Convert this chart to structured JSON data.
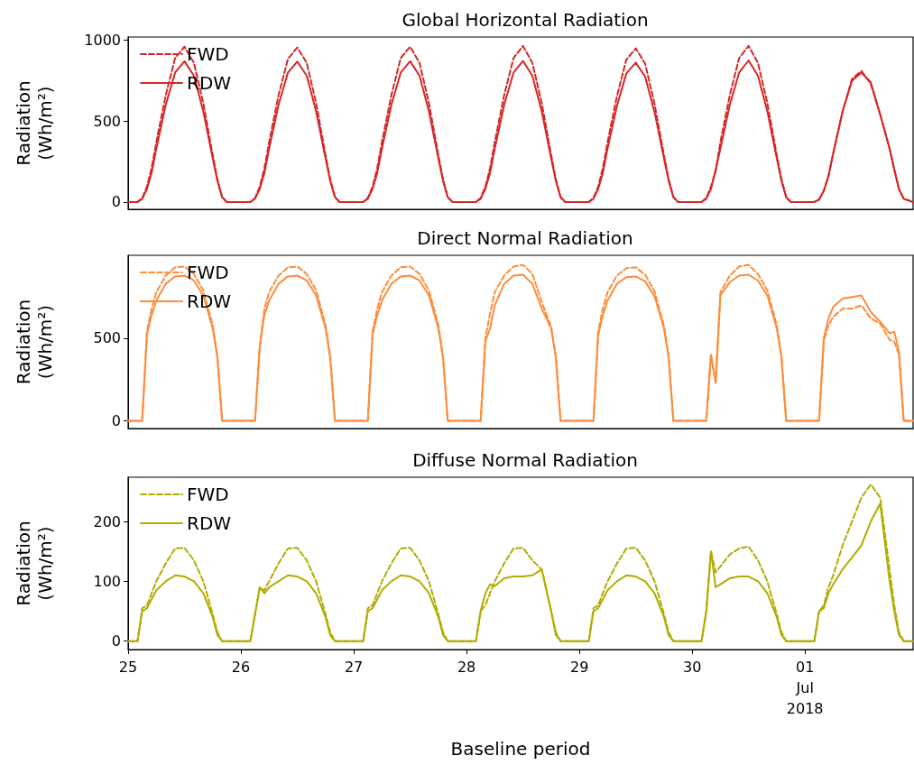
{
  "chart_data": [
    {
      "type": "line",
      "title": "Global Horizontal Radiation",
      "ylabel": "Radiation\n(Wh/m²)",
      "legend": "top left",
      "grid": false,
      "tick_labels": "y",
      "x": [
        "2018-06-25T00:00",
        "2018-06-25T02:00",
        "2018-06-25T03:00",
        "2018-06-25T04:00",
        "2018-06-25T05:00",
        "2018-06-25T06:00",
        "2018-06-25T08:00",
        "2018-06-25T10:00",
        "2018-06-25T12:00",
        "2018-06-25T14:00",
        "2018-06-25T16:00",
        "2018-06-25T18:00",
        "2018-06-25T19:00",
        "2018-06-25T20:00",
        "2018-06-25T21:00",
        "2018-06-26T02:00",
        "2018-06-26T03:00",
        "2018-06-26T04:00",
        "2018-06-26T05:00",
        "2018-06-26T06:00",
        "2018-06-26T08:00",
        "2018-06-26T10:00",
        "2018-06-26T12:00",
        "2018-06-26T14:00",
        "2018-06-26T16:00",
        "2018-06-26T18:00",
        "2018-06-26T19:00",
        "2018-06-26T20:00",
        "2018-06-26T21:00",
        "2018-06-27T02:00",
        "2018-06-27T03:00",
        "2018-06-27T04:00",
        "2018-06-27T05:00",
        "2018-06-27T06:00",
        "2018-06-27T08:00",
        "2018-06-27T10:00",
        "2018-06-27T12:00",
        "2018-06-27T14:00",
        "2018-06-27T16:00",
        "2018-06-27T18:00",
        "2018-06-27T19:00",
        "2018-06-27T20:00",
        "2018-06-27T21:00",
        "2018-06-28T02:00",
        "2018-06-28T03:00",
        "2018-06-28T04:00",
        "2018-06-28T05:00",
        "2018-06-28T06:00",
        "2018-06-28T08:00",
        "2018-06-28T10:00",
        "2018-06-28T12:00",
        "2018-06-28T14:00",
        "2018-06-28T16:00",
        "2018-06-28T18:00",
        "2018-06-28T19:00",
        "2018-06-28T20:00",
        "2018-06-28T21:00",
        "2018-06-29T02:00",
        "2018-06-29T03:00",
        "2018-06-29T04:00",
        "2018-06-29T05:00",
        "2018-06-29T06:00",
        "2018-06-29T08:00",
        "2018-06-29T10:00",
        "2018-06-29T12:00",
        "2018-06-29T14:00",
        "2018-06-29T16:00",
        "2018-06-29T18:00",
        "2018-06-29T19:00",
        "2018-06-29T20:00",
        "2018-06-29T21:00",
        "2018-06-30T02:00",
        "2018-06-30T03:00",
        "2018-06-30T04:00",
        "2018-06-30T05:00",
        "2018-06-30T06:00",
        "2018-06-30T08:00",
        "2018-06-30T10:00",
        "2018-06-30T12:00",
        "2018-06-30T14:00",
        "2018-06-30T16:00",
        "2018-06-30T18:00",
        "2018-06-30T19:00",
        "2018-06-30T20:00",
        "2018-06-30T21:00",
        "2018-07-01T02:00",
        "2018-07-01T03:00",
        "2018-07-01T04:00",
        "2018-07-01T05:00",
        "2018-07-01T06:00",
        "2018-07-01T08:00",
        "2018-07-01T10:00",
        "2018-07-01T12:00",
        "2018-07-01T14:00",
        "2018-07-01T16:00",
        "2018-07-01T18:00",
        "2018-07-01T19:00",
        "2018-07-01T20:00",
        "2018-07-01T21:00",
        "2018-07-01T23:00"
      ],
      "xlim": [
        "2018-06-25T00:00",
        "2018-07-01T23:00"
      ],
      "ylim": [
        -45,
        1020
      ],
      "yticks": [
        0,
        500,
        1000
      ],
      "series": [
        {
          "name": "FWD",
          "color": "#d62728",
          "line_style": "dashed",
          "values": [
            0,
            0,
            25,
            95,
            210,
            370,
            660,
            890,
            960,
            860,
            610,
            290,
            140,
            30,
            0,
            0,
            25,
            95,
            210,
            370,
            660,
            885,
            955,
            860,
            610,
            290,
            140,
            30,
            0,
            0,
            25,
            95,
            210,
            370,
            660,
            890,
            960,
            860,
            610,
            290,
            140,
            30,
            0,
            0,
            25,
            95,
            210,
            370,
            660,
            890,
            965,
            860,
            610,
            290,
            140,
            30,
            0,
            0,
            25,
            95,
            210,
            370,
            655,
            880,
            950,
            855,
            605,
            290,
            140,
            30,
            0,
            0,
            25,
            95,
            190,
            370,
            660,
            890,
            965,
            860,
            610,
            290,
            140,
            30,
            0,
            0,
            15,
            70,
            160,
            300,
            560,
            760,
            810,
            730,
            540,
            330,
            200,
            80,
            20,
            0
          ]
        },
        {
          "name": "RDW",
          "color": "#d62728",
          "line_style": "solid",
          "values": [
            0,
            0,
            20,
            80,
            180,
            330,
            600,
            800,
            870,
            780,
            560,
            270,
            130,
            30,
            0,
            0,
            20,
            80,
            180,
            330,
            600,
            800,
            868,
            780,
            560,
            270,
            130,
            30,
            0,
            0,
            20,
            80,
            180,
            330,
            600,
            800,
            870,
            780,
            560,
            270,
            130,
            30,
            0,
            0,
            20,
            80,
            180,
            330,
            600,
            800,
            872,
            780,
            560,
            270,
            130,
            30,
            0,
            0,
            20,
            80,
            180,
            330,
            595,
            795,
            862,
            775,
            555,
            270,
            130,
            30,
            0,
            0,
            20,
            80,
            200,
            330,
            600,
            800,
            875,
            780,
            560,
            270,
            130,
            30,
            0,
            0,
            15,
            70,
            160,
            300,
            560,
            750,
            800,
            740,
            540,
            330,
            200,
            80,
            20,
            0
          ]
        }
      ]
    },
    {
      "type": "line",
      "title": "Direct Normal Radiation",
      "ylabel": "Radiation\n(Wh/m²)",
      "legend": "top left",
      "grid": false,
      "tick_labels": "y",
      "x": [
        "2018-06-25T00:00",
        "2018-06-25T02:00",
        "2018-06-25T03:00",
        "2018-06-25T04:00",
        "2018-06-25T05:00",
        "2018-06-25T06:00",
        "2018-06-25T08:00",
        "2018-06-25T10:00",
        "2018-06-25T12:00",
        "2018-06-25T14:00",
        "2018-06-25T16:00",
        "2018-06-25T18:00",
        "2018-06-25T19:00",
        "2018-06-25T20:00",
        "2018-06-25T21:00",
        "2018-06-26T02:00",
        "2018-06-26T03:00",
        "2018-06-26T04:00",
        "2018-06-26T05:00",
        "2018-06-26T06:00",
        "2018-06-26T08:00",
        "2018-06-26T10:00",
        "2018-06-26T12:00",
        "2018-06-26T14:00",
        "2018-06-26T16:00",
        "2018-06-26T18:00",
        "2018-06-26T19:00",
        "2018-06-26T20:00",
        "2018-06-26T21:00",
        "2018-06-27T02:00",
        "2018-06-27T03:00",
        "2018-06-27T04:00",
        "2018-06-27T05:00",
        "2018-06-27T06:00",
        "2018-06-27T08:00",
        "2018-06-27T10:00",
        "2018-06-27T12:00",
        "2018-06-27T14:00",
        "2018-06-27T16:00",
        "2018-06-27T18:00",
        "2018-06-27T19:00",
        "2018-06-27T20:00",
        "2018-06-27T21:00",
        "2018-06-28T02:00",
        "2018-06-28T03:00",
        "2018-06-28T04:00",
        "2018-06-28T05:00",
        "2018-06-28T06:00",
        "2018-06-28T08:00",
        "2018-06-28T10:00",
        "2018-06-28T12:00",
        "2018-06-28T14:00",
        "2018-06-28T16:00",
        "2018-06-28T18:00",
        "2018-06-28T19:00",
        "2018-06-28T20:00",
        "2018-06-28T21:00",
        "2018-06-29T02:00",
        "2018-06-29T03:00",
        "2018-06-29T04:00",
        "2018-06-29T05:00",
        "2018-06-29T06:00",
        "2018-06-29T08:00",
        "2018-06-29T10:00",
        "2018-06-29T12:00",
        "2018-06-29T14:00",
        "2018-06-29T16:00",
        "2018-06-29T18:00",
        "2018-06-29T19:00",
        "2018-06-29T20:00",
        "2018-06-29T21:00",
        "2018-06-30T02:00",
        "2018-06-30T03:00",
        "2018-06-30T04:00",
        "2018-06-30T05:00",
        "2018-06-30T06:00",
        "2018-06-30T08:00",
        "2018-06-30T10:00",
        "2018-06-30T12:00",
        "2018-06-30T14:00",
        "2018-06-30T16:00",
        "2018-06-30T18:00",
        "2018-06-30T19:00",
        "2018-06-30T20:00",
        "2018-06-30T21:00",
        "2018-07-01T02:00",
        "2018-07-01T03:00",
        "2018-07-01T04:00",
        "2018-07-01T05:00",
        "2018-07-01T06:00",
        "2018-07-01T08:00",
        "2018-07-01T10:00",
        "2018-07-01T12:00",
        "2018-07-01T14:00",
        "2018-07-01T16:00",
        "2018-07-01T18:00",
        "2018-07-01T19:00",
        "2018-07-01T20:00",
        "2018-07-01T21:00",
        "2018-07-01T23:00"
      ],
      "xlim": [
        "2018-06-25T00:00",
        "2018-07-01T23:00"
      ],
      "ylim": [
        -47,
        1003
      ],
      "yticks": [
        0,
        500
      ],
      "series": [
        {
          "name": "FWD",
          "color": "#fd8d3c",
          "line_style": "dashed",
          "values": [
            0,
            0,
            0,
            540,
            680,
            780,
            880,
            930,
            935,
            890,
            790,
            580,
            390,
            0,
            0,
            0,
            0,
            450,
            680,
            780,
            880,
            930,
            935,
            890,
            790,
            580,
            390,
            0,
            0,
            0,
            0,
            540,
            680,
            780,
            880,
            930,
            935,
            890,
            790,
            580,
            390,
            0,
            0,
            0,
            0,
            500,
            650,
            780,
            880,
            935,
            945,
            890,
            720,
            570,
            390,
            0,
            0,
            0,
            0,
            540,
            680,
            780,
            880,
            925,
            930,
            885,
            785,
            575,
            390,
            0,
            0,
            0,
            0,
            400,
            230,
            780,
            880,
            935,
            945,
            890,
            790,
            580,
            390,
            0,
            0,
            0,
            0,
            480,
            580,
            630,
            680,
            680,
            700,
            620,
            590,
            490,
            480,
            400,
            0,
            0
          ]
        },
        {
          "name": "RDW",
          "color": "#fd8d3c",
          "line_style": "solid",
          "values": [
            0,
            0,
            0,
            520,
            640,
            730,
            830,
            875,
            880,
            850,
            760,
            560,
            380,
            0,
            0,
            0,
            0,
            450,
            640,
            730,
            830,
            875,
            880,
            850,
            760,
            560,
            380,
            0,
            0,
            0,
            0,
            520,
            640,
            730,
            830,
            875,
            880,
            850,
            760,
            560,
            380,
            0,
            0,
            0,
            0,
            480,
            560,
            700,
            830,
            880,
            885,
            830,
            680,
            560,
            380,
            0,
            0,
            0,
            0,
            520,
            640,
            730,
            830,
            870,
            875,
            845,
            755,
            560,
            380,
            0,
            0,
            0,
            0,
            400,
            230,
            760,
            840,
            880,
            885,
            850,
            760,
            560,
            380,
            0,
            0,
            0,
            0,
            500,
            620,
            690,
            740,
            750,
            760,
            660,
            600,
            530,
            540,
            420,
            0,
            0
          ]
        }
      ]
    },
    {
      "type": "line",
      "title": "Diffuse Normal Radiation",
      "xlabel": "Baseline period",
      "ylabel": "Radiation\n(Wh/m²)",
      "legend": "top left",
      "grid": false,
      "x": [
        "2018-06-25T00:00",
        "2018-06-25T02:00",
        "2018-06-25T03:00",
        "2018-06-25T04:00",
        "2018-06-25T05:00",
        "2018-06-25T06:00",
        "2018-06-25T08:00",
        "2018-06-25T10:00",
        "2018-06-25T12:00",
        "2018-06-25T14:00",
        "2018-06-25T16:00",
        "2018-06-25T18:00",
        "2018-06-25T19:00",
        "2018-06-25T20:00",
        "2018-06-25T21:00",
        "2018-06-26T02:00",
        "2018-06-26T03:00",
        "2018-06-26T04:00",
        "2018-06-26T05:00",
        "2018-06-26T06:00",
        "2018-06-26T08:00",
        "2018-06-26T10:00",
        "2018-06-26T12:00",
        "2018-06-26T14:00",
        "2018-06-26T16:00",
        "2018-06-26T18:00",
        "2018-06-26T19:00",
        "2018-06-26T20:00",
        "2018-06-26T21:00",
        "2018-06-27T02:00",
        "2018-06-27T03:00",
        "2018-06-27T04:00",
        "2018-06-27T05:00",
        "2018-06-27T06:00",
        "2018-06-27T08:00",
        "2018-06-27T10:00",
        "2018-06-27T12:00",
        "2018-06-27T14:00",
        "2018-06-27T16:00",
        "2018-06-27T18:00",
        "2018-06-27T19:00",
        "2018-06-27T20:00",
        "2018-06-27T21:00",
        "2018-06-28T02:00",
        "2018-06-28T03:00",
        "2018-06-28T04:00",
        "2018-06-28T05:00",
        "2018-06-28T06:00",
        "2018-06-28T08:00",
        "2018-06-28T10:00",
        "2018-06-28T12:00",
        "2018-06-28T14:00",
        "2018-06-28T16:00",
        "2018-06-28T18:00",
        "2018-06-28T19:00",
        "2018-06-28T20:00",
        "2018-06-28T21:00",
        "2018-06-29T02:00",
        "2018-06-29T03:00",
        "2018-06-29T04:00",
        "2018-06-29T05:00",
        "2018-06-29T06:00",
        "2018-06-29T08:00",
        "2018-06-29T10:00",
        "2018-06-29T12:00",
        "2018-06-29T14:00",
        "2018-06-29T16:00",
        "2018-06-29T18:00",
        "2018-06-29T19:00",
        "2018-06-29T20:00",
        "2018-06-29T21:00",
        "2018-06-30T02:00",
        "2018-06-30T03:00",
        "2018-06-30T04:00",
        "2018-06-30T05:00",
        "2018-06-30T06:00",
        "2018-06-30T08:00",
        "2018-06-30T10:00",
        "2018-06-30T12:00",
        "2018-06-30T14:00",
        "2018-06-30T16:00",
        "2018-06-30T18:00",
        "2018-06-30T19:00",
        "2018-06-30T20:00",
        "2018-06-30T21:00",
        "2018-07-01T02:00",
        "2018-07-01T03:00",
        "2018-07-01T04:00",
        "2018-07-01T05:00",
        "2018-07-01T06:00",
        "2018-07-01T08:00",
        "2018-07-01T10:00",
        "2018-07-01T12:00",
        "2018-07-01T14:00",
        "2018-07-01T16:00",
        "2018-07-01T18:00",
        "2018-07-01T19:00",
        "2018-07-01T20:00",
        "2018-07-01T21:00",
        "2018-07-01T23:00"
      ],
      "xlim": [
        "2018-06-25T00:00",
        "2018-07-01T23:00"
      ],
      "xticks": [
        {
          "value": "2018-06-25",
          "label": "25"
        },
        {
          "value": "2018-06-26",
          "label": "26"
        },
        {
          "value": "2018-06-27",
          "label": "27"
        },
        {
          "value": "2018-06-28",
          "label": "28"
        },
        {
          "value": "2018-06-29",
          "label": "29"
        },
        {
          "value": "2018-06-30",
          "label": "30"
        },
        {
          "value": "2018-07-01",
          "label": "01\nJul\n2018"
        }
      ],
      "ylim": [
        -14,
        274
      ],
      "yticks": [
        0,
        100,
        200
      ],
      "series": [
        {
          "name": "FWD",
          "color": "#b2ac00",
          "line_style": "dashed",
          "values": [
            0,
            0,
            55,
            60,
            80,
            100,
            130,
            155,
            156,
            135,
            100,
            45,
            15,
            0,
            0,
            0,
            45,
            90,
            85,
            100,
            130,
            155,
            156,
            135,
            100,
            45,
            15,
            0,
            0,
            0,
            55,
            60,
            80,
            100,
            130,
            155,
            156,
            135,
            100,
            45,
            15,
            0,
            0,
            0,
            50,
            60,
            80,
            100,
            130,
            155,
            156,
            135,
            120,
            50,
            15,
            0,
            0,
            0,
            55,
            60,
            80,
            100,
            130,
            155,
            156,
            135,
            100,
            45,
            15,
            0,
            0,
            0,
            50,
            150,
            115,
            125,
            145,
            155,
            158,
            135,
            100,
            45,
            15,
            0,
            0,
            0,
            50,
            60,
            90,
            110,
            160,
            200,
            240,
            262,
            240,
            120,
            60,
            15,
            0,
            0
          ]
        },
        {
          "name": "RDW",
          "color": "#b2ac00",
          "line_style": "solid",
          "values": [
            0,
            0,
            50,
            55,
            70,
            85,
            100,
            110,
            108,
            100,
            80,
            40,
            10,
            0,
            0,
            0,
            45,
            90,
            80,
            90,
            100,
            110,
            108,
            100,
            80,
            40,
            10,
            0,
            0,
            0,
            50,
            55,
            70,
            85,
            100,
            110,
            108,
            100,
            80,
            40,
            10,
            0,
            0,
            0,
            50,
            80,
            95,
            92,
            105,
            108,
            108,
            110,
            120,
            50,
            10,
            0,
            0,
            0,
            50,
            55,
            70,
            85,
            100,
            110,
            108,
            100,
            80,
            40,
            10,
            0,
            0,
            0,
            50,
            150,
            90,
            95,
            105,
            108,
            108,
            100,
            80,
            40,
            10,
            0,
            0,
            0,
            50,
            55,
            80,
            95,
            120,
            140,
            160,
            200,
            230,
            100,
            50,
            10,
            0,
            0
          ]
        }
      ]
    }
  ]
}
